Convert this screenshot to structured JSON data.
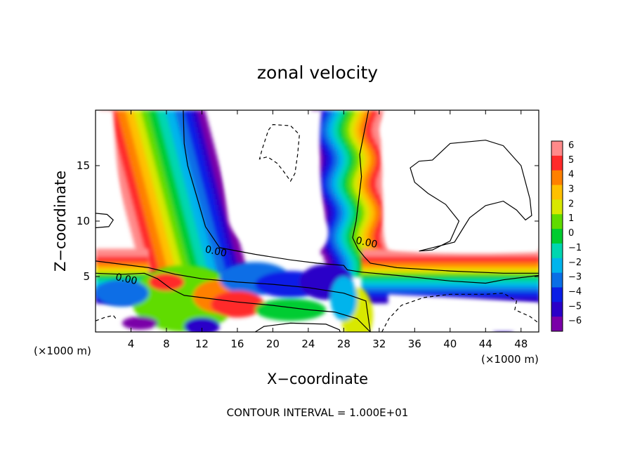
{
  "chart_data": {
    "type": "heatmap",
    "title": "zonal velocity",
    "xlabel": "X−coordinate",
    "ylabel": "Z−coordinate",
    "x_unit_left": "(×1000 m)",
    "x_unit_right": "(×1000 m)",
    "xlim": [
      0,
      50
    ],
    "ylim": [
      0,
      20
    ],
    "xticks": [
      4,
      8,
      12,
      16,
      20,
      24,
      28,
      32,
      36,
      40,
      44,
      48
    ],
    "yticks": [
      5,
      10,
      15
    ],
    "colorbar": {
      "min": -6,
      "max": 6,
      "ticks": [
        6,
        5,
        4,
        3,
        2,
        1,
        0,
        -1,
        -2,
        -3,
        -4,
        -5,
        -6
      ],
      "tick_labels": [
        "6",
        "5",
        "4",
        "3",
        "2",
        "1",
        "0",
        "−1",
        "−2",
        "−3",
        "−4",
        "−5",
        "−6"
      ],
      "colors": [
        "#7a00a8",
        "#2a00c8",
        "#0a1ee6",
        "#0a6ee6",
        "#00b4ec",
        "#00d6b0",
        "#00cc30",
        "#60dc00",
        "#d8e800",
        "#ffc000",
        "#ff8000",
        "#ff2a2a",
        "#ff8a8a"
      ]
    },
    "contour_labels": [
      "0.00",
      "0.00",
      "0.00"
    ],
    "contour_interval_text": "CONTOUR INTERVAL = 1.000E+01",
    "features": [
      {
        "name": "left tilted jet",
        "x": [
          11,
          4
        ],
        "z": [
          0,
          20
        ]
      },
      {
        "name": "right tilted jet",
        "x": [
          30,
          27
        ],
        "z": [
          0,
          20
        ]
      },
      {
        "name": "low level shear layer",
        "z_center": 5
      }
    ]
  }
}
